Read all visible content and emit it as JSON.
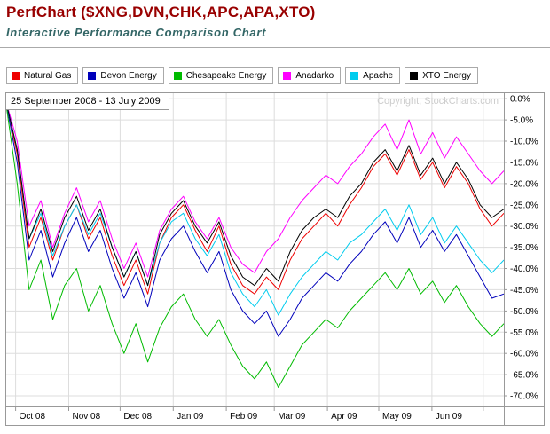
{
  "header": {
    "title": "PerfChart ($XNG,DVN,CHK,APC,APA,XTO)",
    "subtitle": "Interactive Performance Comparison Chart"
  },
  "chart_data": {
    "type": "line",
    "title": "PerfChart ($XNG,DVN,CHK,APC,APA,XTO)",
    "date_range_label": "25 September 2008 - 13 July 2009",
    "copyright": "Copyright, StockCharts.com",
    "legend_position": "top",
    "grid": true,
    "x_axis": {
      "start_date": "25 September 2008",
      "end_date": "13 July 2009",
      "total_days": 291,
      "ticks": [
        {
          "label": "Oct 08",
          "day": 6
        },
        {
          "label": "Nov 08",
          "day": 37
        },
        {
          "label": "Dec 08",
          "day": 67
        },
        {
          "label": "Jan 09",
          "day": 98
        },
        {
          "label": "Feb 09",
          "day": 129
        },
        {
          "label": "Mar 09",
          "day": 157
        },
        {
          "label": "Apr 09",
          "day": 188
        },
        {
          "label": "May 09",
          "day": 218
        },
        {
          "label": "Jun 09",
          "day": 249
        }
      ],
      "unlabeled_gridline_days": [
        279
      ]
    },
    "y_axis": {
      "unit": "%",
      "ylim": [
        -72.5,
        1.5
      ],
      "tick_values": [
        0,
        -5,
        -10,
        -15,
        -20,
        -25,
        -30,
        -35,
        -40,
        -45,
        -50,
        -55,
        -60,
        -65,
        -70
      ],
      "tick_labels": [
        "0.0%",
        "-5.0%",
        "-10.0%",
        "-15.0%",
        "-20.0%",
        "-25.0%",
        "-30.0%",
        "-35.0%",
        "-40.0%",
        "-45.0%",
        "-50.0%",
        "-55.0%",
        "-60.0%",
        "-65.0%",
        "-70.0%"
      ]
    },
    "sampling": "approx weekly percent-change values, evenly spaced across date range",
    "series": [
      {
        "name": "Natural Gas",
        "color": "#EE0000",
        "values": [
          0,
          -13,
          -35,
          -28,
          -38,
          -30,
          -25,
          -33,
          -28,
          -37,
          -44,
          -38,
          -46,
          -34,
          -28,
          -25,
          -31,
          -36,
          -30,
          -39,
          -44,
          -46,
          -42,
          -45,
          -38,
          -33,
          -30,
          -27,
          -30,
          -25,
          -21,
          -16,
          -13,
          -18,
          -12,
          -19,
          -15,
          -21,
          -16,
          -20,
          -26,
          -30,
          -27
        ]
      },
      {
        "name": "Devon Energy",
        "color": "#0000BB",
        "values": [
          0,
          -15,
          -38,
          -31,
          -42,
          -34,
          -28,
          -36,
          -31,
          -40,
          -47,
          -41,
          -49,
          -38,
          -33,
          -30,
          -36,
          -41,
          -36,
          -45,
          -50,
          -53,
          -50,
          -56,
          -52,
          -47,
          -44,
          -41,
          -43,
          -39,
          -36,
          -32,
          -29,
          -34,
          -28,
          -35,
          -31,
          -36,
          -32,
          -37,
          -42,
          -47,
          -46
        ]
      },
      {
        "name": "Chesapeake Energy",
        "color": "#00BB00",
        "values": [
          0,
          -20,
          -45,
          -38,
          -52,
          -44,
          -40,
          -50,
          -44,
          -53,
          -60,
          -53,
          -62,
          -54,
          -49,
          -46,
          -52,
          -56,
          -52,
          -58,
          -63,
          -66,
          -62,
          -68,
          -63,
          -58,
          -55,
          -52,
          -54,
          -50,
          -47,
          -44,
          -41,
          -45,
          -40,
          -46,
          -43,
          -48,
          -44,
          -49,
          -53,
          -56,
          -53
        ]
      },
      {
        "name": "Anadarko",
        "color": "#FF00FF",
        "values": [
          0,
          -10,
          -30,
          -24,
          -35,
          -27,
          -21,
          -29,
          -24,
          -33,
          -40,
          -34,
          -42,
          -31,
          -26,
          -23,
          -29,
          -33,
          -28,
          -35,
          -39,
          -41,
          -36,
          -33,
          -28,
          -24,
          -21,
          -18,
          -20,
          -16,
          -13,
          -9,
          -6,
          -12,
          -5,
          -13,
          -8,
          -14,
          -9,
          -13,
          -17,
          -20,
          -17
        ]
      },
      {
        "name": "Apache",
        "color": "#00CCEE",
        "values": [
          0,
          -12,
          -33,
          -27,
          -37,
          -30,
          -25,
          -32,
          -27,
          -35,
          -42,
          -36,
          -44,
          -34,
          -29,
          -27,
          -33,
          -37,
          -32,
          -41,
          -46,
          -49,
          -45,
          -51,
          -46,
          -42,
          -39,
          -36,
          -38,
          -34,
          -32,
          -29,
          -26,
          -31,
          -25,
          -32,
          -28,
          -34,
          -30,
          -34,
          -38,
          -41,
          -38
        ]
      },
      {
        "name": "XTO Energy",
        "color": "#000000",
        "values": [
          0,
          -12,
          -33,
          -26,
          -36,
          -28,
          -23,
          -31,
          -26,
          -35,
          -42,
          -36,
          -44,
          -32,
          -27,
          -24,
          -30,
          -34,
          -29,
          -37,
          -42,
          -44,
          -40,
          -43,
          -36,
          -31,
          -28,
          -26,
          -28,
          -23,
          -20,
          -15,
          -12,
          -17,
          -11,
          -18,
          -14,
          -20,
          -15,
          -19,
          -25,
          -28,
          -26
        ]
      }
    ]
  }
}
